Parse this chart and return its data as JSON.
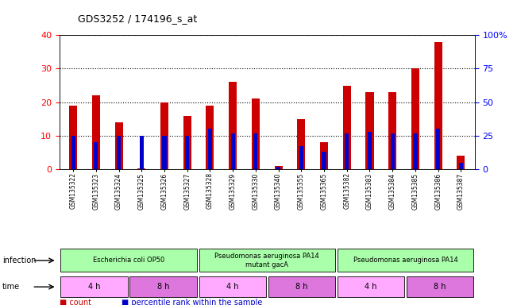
{
  "title": "GDS3252 / 174196_s_at",
  "samples": [
    "GSM135322",
    "GSM135323",
    "GSM135324",
    "GSM135325",
    "GSM135326",
    "GSM135327",
    "GSM135328",
    "GSM135329",
    "GSM135330",
    "GSM135340",
    "GSM135355",
    "GSM135365",
    "GSM135382",
    "GSM135383",
    "GSM135384",
    "GSM135385",
    "GSM135386",
    "GSM135387"
  ],
  "counts": [
    19,
    22,
    14,
    0.3,
    20,
    16,
    19,
    26,
    21,
    1,
    15,
    8,
    25,
    23,
    23,
    30,
    38,
    4
  ],
  "percentiles": [
    25,
    20,
    25,
    25,
    25,
    25,
    30,
    27,
    27,
    2,
    17,
    13,
    27,
    28,
    27,
    27,
    30,
    5
  ],
  "bar_color": "#cc0000",
  "pct_color": "#0000cc",
  "ylim_left": [
    0,
    40
  ],
  "ylim_right": [
    0,
    100
  ],
  "yticks_left": [
    0,
    10,
    20,
    30,
    40
  ],
  "yticks_right": [
    0,
    25,
    50,
    75,
    100
  ],
  "ytick_labels_right": [
    "0",
    "25",
    "50",
    "75",
    "100%"
  ],
  "infection_groups": [
    {
      "label": "Escherichia coli OP50",
      "start": 0,
      "end": 6,
      "color": "#aaffaa"
    },
    {
      "label": "Pseudomonas aeruginosa PA14\nmutant gacA",
      "start": 6,
      "end": 12,
      "color": "#aaffaa"
    },
    {
      "label": "Pseudomonas aeruginosa PA14",
      "start": 12,
      "end": 18,
      "color": "#aaffaa"
    }
  ],
  "time_groups": [
    {
      "label": "4 h",
      "start": 0,
      "end": 3,
      "color": "#ffaaff"
    },
    {
      "label": "8 h",
      "start": 3,
      "end": 6,
      "color": "#dd77dd"
    },
    {
      "label": "4 h",
      "start": 6,
      "end": 9,
      "color": "#ffaaff"
    },
    {
      "label": "8 h",
      "start": 9,
      "end": 12,
      "color": "#dd77dd"
    },
    {
      "label": "4 h",
      "start": 12,
      "end": 15,
      "color": "#ffaaff"
    },
    {
      "label": "8 h",
      "start": 15,
      "end": 18,
      "color": "#dd77dd"
    }
  ],
  "bg_color": "#ffffff",
  "tick_area_color": "#bbbbbb",
  "infection_label": "infection",
  "time_label": "time",
  "legend_count_label": "count",
  "legend_pct_label": "percentile rank within the sample"
}
